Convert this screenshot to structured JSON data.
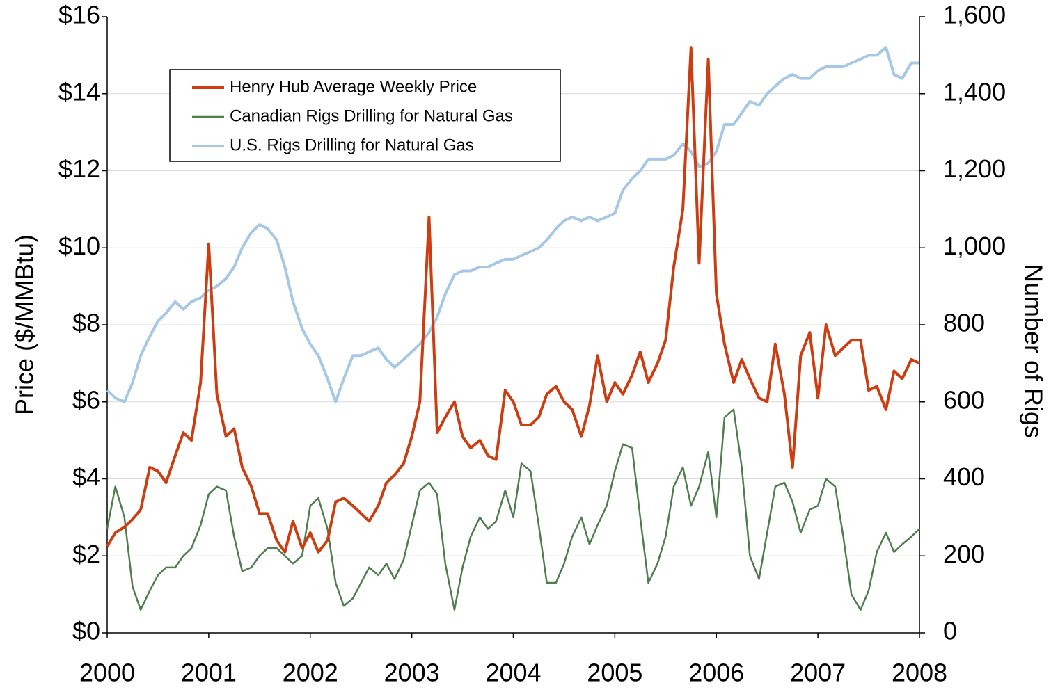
{
  "chart_data": {
    "type": "line",
    "y_label": "Price ($/MMBtu)",
    "y2_label": "Number of Rigs",
    "x": [
      2000,
      2000.08,
      2000.17,
      2000.25,
      2000.33,
      2000.42,
      2000.5,
      2000.58,
      2000.67,
      2000.75,
      2000.83,
      2000.92,
      2001,
      2001.08,
      2001.17,
      2001.25,
      2001.33,
      2001.42,
      2001.5,
      2001.58,
      2001.67,
      2001.75,
      2001.83,
      2001.92,
      2002,
      2002.08,
      2002.17,
      2002.25,
      2002.33,
      2002.42,
      2002.5,
      2002.58,
      2002.67,
      2002.75,
      2002.83,
      2002.92,
      2003,
      2003.08,
      2003.17,
      2003.25,
      2003.33,
      2003.42,
      2003.5,
      2003.58,
      2003.67,
      2003.75,
      2003.83,
      2003.92,
      2004,
      2004.08,
      2004.17,
      2004.25,
      2004.33,
      2004.42,
      2004.5,
      2004.58,
      2004.67,
      2004.75,
      2004.83,
      2004.92,
      2005,
      2005.08,
      2005.17,
      2005.25,
      2005.33,
      2005.42,
      2005.5,
      2005.58,
      2005.67,
      2005.75,
      2005.83,
      2005.92,
      2006,
      2006.08,
      2006.17,
      2006.25,
      2006.33,
      2006.42,
      2006.5,
      2006.58,
      2006.67,
      2006.75,
      2006.83,
      2006.92,
      2007,
      2007.08,
      2007.17,
      2007.25,
      2007.33,
      2007.42,
      2007.5,
      2007.58,
      2007.67,
      2007.75,
      2007.83,
      2007.92,
      2008
    ],
    "series": [
      {
        "name": "Henry Hub Average Weekly Price",
        "color": "#cc3d12",
        "axis": "y",
        "values": [
          2.25,
          2.6,
          2.75,
          2.95,
          3.2,
          4.3,
          4.2,
          3.9,
          4.6,
          5.2,
          5.0,
          6.5,
          10.1,
          6.2,
          5.1,
          5.3,
          4.3,
          3.8,
          3.1,
          3.1,
          2.4,
          2.1,
          2.9,
          2.2,
          2.6,
          2.1,
          2.4,
          3.4,
          3.5,
          3.3,
          3.1,
          2.9,
          3.3,
          3.9,
          4.1,
          4.4,
          5.1,
          6.0,
          10.8,
          5.2,
          5.6,
          6.0,
          5.1,
          4.8,
          5.0,
          4.6,
          4.5,
          6.3,
          6.0,
          5.4,
          5.4,
          5.6,
          6.2,
          6.4,
          6.0,
          5.8,
          5.1,
          5.9,
          7.2,
          6.0,
          6.5,
          6.2,
          6.7,
          7.3,
          6.5,
          7.0,
          7.6,
          9.5,
          11.0,
          15.2,
          9.6,
          14.9,
          8.8,
          7.5,
          6.5,
          7.1,
          6.6,
          6.1,
          6.0,
          7.5,
          6.2,
          4.3,
          7.2,
          7.8,
          6.1,
          8.0,
          7.2,
          7.4,
          7.6,
          7.6,
          6.3,
          6.4,
          5.8,
          6.8,
          6.6,
          7.1,
          7.0
        ]
      },
      {
        "name": "Canadian Rigs Drilling for Natural Gas",
        "color": "#4e7d4e",
        "axis": "y2",
        "values": [
          270,
          380,
          300,
          120,
          60,
          110,
          150,
          170,
          170,
          200,
          220,
          280,
          360,
          380,
          370,
          250,
          160,
          170,
          200,
          220,
          220,
          200,
          180,
          200,
          330,
          350,
          270,
          130,
          70,
          90,
          130,
          170,
          150,
          180,
          140,
          190,
          280,
          370,
          390,
          360,
          180,
          60,
          170,
          250,
          300,
          270,
          290,
          370,
          300,
          440,
          420,
          280,
          130,
          130,
          180,
          250,
          300,
          230,
          280,
          330,
          420,
          490,
          480,
          300,
          130,
          180,
          250,
          380,
          430,
          330,
          380,
          470,
          300,
          560,
          580,
          430,
          200,
          140,
          260,
          380,
          390,
          340,
          260,
          320,
          330,
          400,
          380,
          250,
          100,
          60,
          110,
          210,
          260,
          210,
          230,
          250,
          270
        ]
      },
      {
        "name": "U.S. Rigs Drilling for Natural Gas",
        "color": "#a6c8e6",
        "axis": "y2",
        "values": [
          630,
          610,
          600,
          650,
          720,
          770,
          810,
          830,
          860,
          840,
          860,
          870,
          890,
          900,
          920,
          950,
          1000,
          1040,
          1060,
          1050,
          1020,
          950,
          860,
          790,
          750,
          720,
          660,
          600,
          660,
          720,
          720,
          730,
          740,
          710,
          690,
          710,
          730,
          750,
          780,
          820,
          880,
          930,
          940,
          940,
          950,
          950,
          960,
          970,
          970,
          980,
          990,
          1000,
          1020,
          1050,
          1070,
          1080,
          1070,
          1080,
          1070,
          1080,
          1090,
          1150,
          1180,
          1200,
          1230,
          1230,
          1230,
          1240,
          1270,
          1250,
          1210,
          1220,
          1250,
          1320,
          1320,
          1350,
          1380,
          1370,
          1400,
          1420,
          1440,
          1450,
          1440,
          1440,
          1460,
          1470,
          1470,
          1470,
          1480,
          1490,
          1500,
          1500,
          1520,
          1450,
          1440,
          1480,
          1480
        ]
      }
    ],
    "xlim": [
      2000,
      2008
    ],
    "xticks": [
      2000,
      2001,
      2002,
      2003,
      2004,
      2005,
      2006,
      2007,
      2008
    ],
    "ylim": [
      0,
      16
    ],
    "yticks": [
      {
        "value": 0,
        "label": "$0"
      },
      {
        "value": 2,
        "label": "$2"
      },
      {
        "value": 4,
        "label": "$4"
      },
      {
        "value": 6,
        "label": "$6"
      },
      {
        "value": 8,
        "label": "$8"
      },
      {
        "value": 10,
        "label": "$10"
      },
      {
        "value": 12,
        "label": "$12"
      },
      {
        "value": 14,
        "label": "$14"
      },
      {
        "value": 16,
        "label": "$16"
      }
    ],
    "y2lim": [
      0,
      1600
    ],
    "y2ticks": [
      0,
      200,
      400,
      600,
      800,
      {
        "value": 1000,
        "label": "1,000"
      },
      {
        "value": 1200,
        "label": "1,200"
      },
      {
        "value": 1400,
        "label": "1,400"
      },
      {
        "value": 1600,
        "label": "1,600"
      }
    ],
    "grid": true,
    "legend": "upper left"
  }
}
